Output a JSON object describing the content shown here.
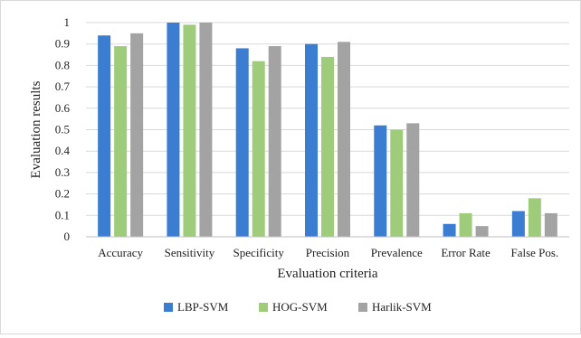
{
  "chart_data": {
    "type": "bar",
    "xlabel": "Evaluation criteria",
    "ylabel": "Evaluation results",
    "ylim": [
      0,
      1
    ],
    "yticks": [
      "0",
      "0.1",
      "0.2",
      "0.3",
      "0.4",
      "0.5",
      "0.6",
      "0.7",
      "0.8",
      "0.9",
      "1"
    ],
    "categories": [
      "Accuracy",
      "Sensitivity",
      "Specificity",
      "Precision",
      "Prevalence",
      "Error Rate",
      "False Pos."
    ],
    "series": [
      {
        "name": "LBP-SVM",
        "color": "#3b7dd0",
        "values": [
          0.94,
          1.0,
          0.88,
          0.9,
          0.52,
          0.06,
          0.12
        ]
      },
      {
        "name": "HOG-SVM",
        "color": "#9fcc7b",
        "values": [
          0.89,
          0.99,
          0.82,
          0.84,
          0.5,
          0.11,
          0.18
        ]
      },
      {
        "name": "Harlik-SVM",
        "color": "#a3a3a3",
        "values": [
          0.95,
          1.0,
          0.89,
          0.91,
          0.53,
          0.05,
          0.11
        ]
      }
    ],
    "grid": true,
    "legend_position": "bottom"
  }
}
